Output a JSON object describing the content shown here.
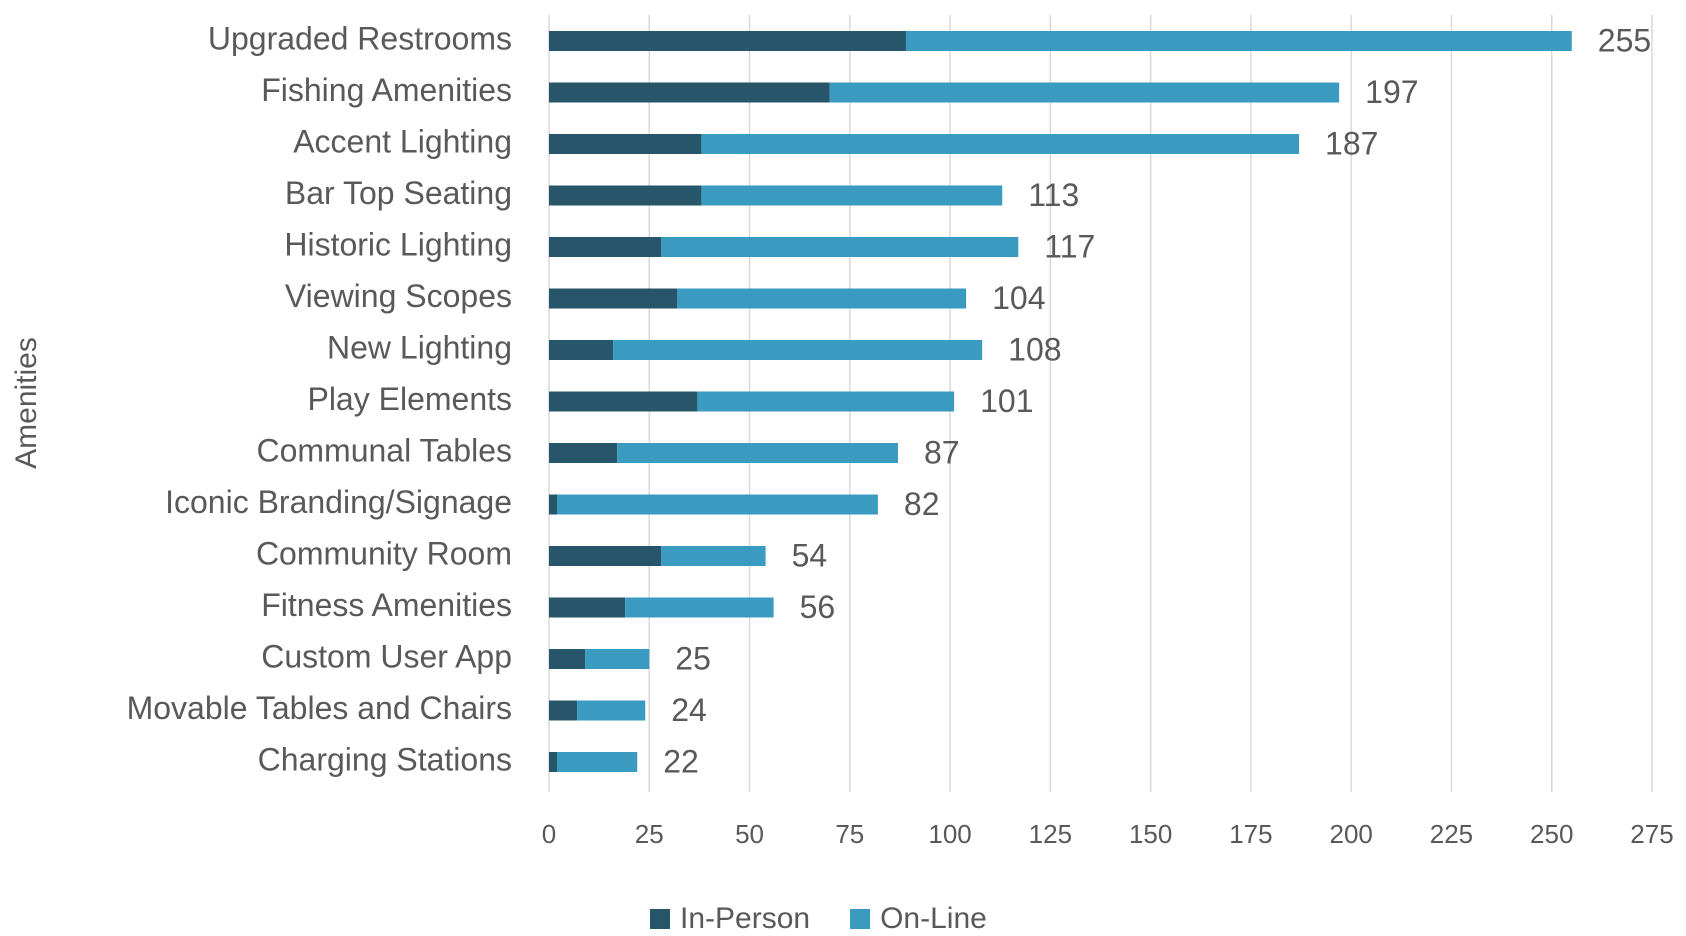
{
  "chart_data": {
    "type": "stacked_barh",
    "y_axis_label": "Amenities",
    "categories": [
      "Upgraded Restrooms",
      "Fishing Amenities",
      "Accent Lighting",
      "Bar Top Seating",
      "Historic Lighting",
      "Viewing Scopes",
      "New Lighting",
      "Play Elements",
      "Communal Tables",
      "Iconic Branding/Signage",
      "Community Room",
      "Fitness Amenities",
      "Custom User App",
      "Movable Tables and Chairs",
      "Charging Stations"
    ],
    "series": [
      {
        "name": "In-Person",
        "color": "#27566b",
        "values": [
          89,
          70,
          38,
          38,
          28,
          32,
          16,
          37,
          17,
          2,
          28,
          19,
          9,
          7,
          2
        ]
      },
      {
        "name": "On-Line",
        "color": "#3a9ac0",
        "values": [
          166,
          127,
          149,
          75,
          89,
          72,
          92,
          64,
          70,
          80,
          26,
          37,
          16,
          17,
          20
        ]
      }
    ],
    "totals": [
      255,
      197,
      187,
      113,
      117,
      104,
      108,
      101,
      87,
      82,
      54,
      56,
      25,
      24,
      22
    ],
    "xlim": [
      0,
      275
    ],
    "xticks": [
      0,
      25,
      50,
      75,
      100,
      125,
      150,
      175,
      200,
      225,
      250,
      275
    ],
    "grid": true,
    "legend": "bottom"
  }
}
